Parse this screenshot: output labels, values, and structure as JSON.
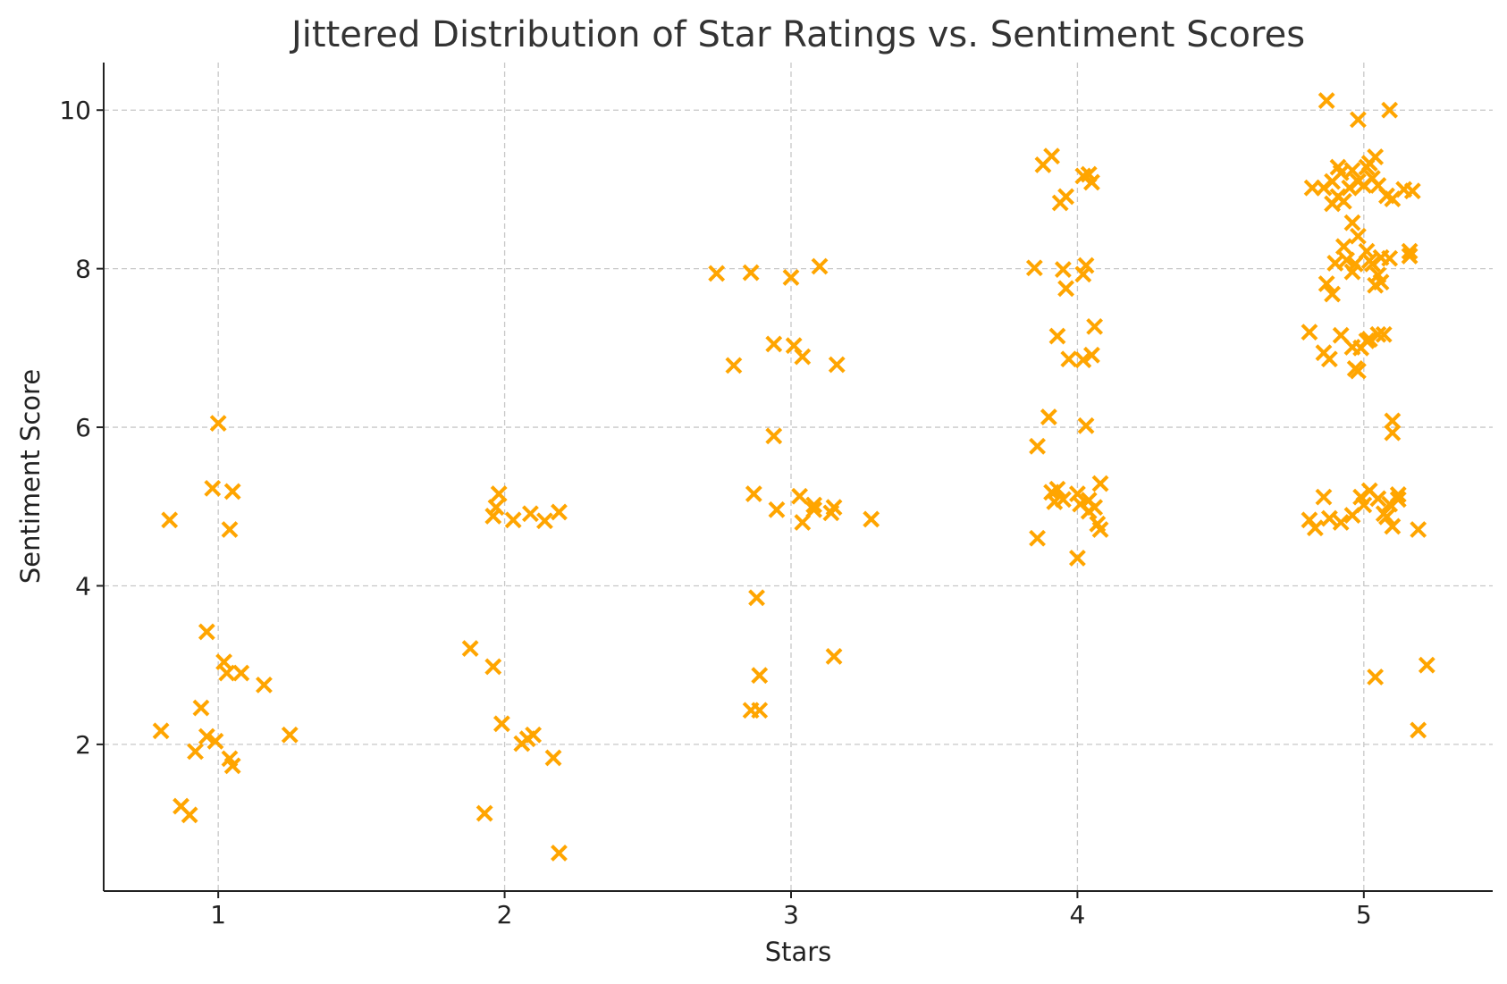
{
  "chart_data": {
    "type": "scatter",
    "title": "Jittered Distribution of Star Ratings vs. Sentiment Scores",
    "xlabel": "Stars",
    "ylabel": "Sentiment Score",
    "xlim": [
      0.6,
      5.45
    ],
    "ylim": [
      0.15,
      10.6
    ],
    "xticks": [
      1,
      2,
      3,
      4,
      5
    ],
    "yticks": [
      2,
      4,
      6,
      8,
      10
    ],
    "grid": true,
    "marker": "x",
    "color": "#FFA500",
    "points": [
      [
        0.83,
        4.83
      ],
      [
        0.8,
        2.17
      ],
      [
        1.0,
        6.05
      ],
      [
        0.98,
        5.23
      ],
      [
        1.05,
        5.19
      ],
      [
        1.04,
        4.71
      ],
      [
        0.96,
        3.42
      ],
      [
        1.02,
        3.04
      ],
      [
        1.03,
        2.9
      ],
      [
        1.08,
        2.9
      ],
      [
        1.16,
        2.75
      ],
      [
        0.94,
        2.46
      ],
      [
        0.96,
        2.1
      ],
      [
        0.99,
        2.04
      ],
      [
        0.92,
        1.91
      ],
      [
        1.04,
        1.82
      ],
      [
        1.05,
        1.73
      ],
      [
        1.25,
        2.12
      ],
      [
        0.87,
        1.22
      ],
      [
        0.9,
        1.11
      ],
      [
        1.98,
        5.16
      ],
      [
        1.97,
        4.99
      ],
      [
        1.96,
        4.88
      ],
      [
        2.03,
        4.83
      ],
      [
        2.09,
        4.91
      ],
      [
        2.14,
        4.82
      ],
      [
        2.19,
        4.93
      ],
      [
        1.88,
        3.21
      ],
      [
        1.96,
        2.98
      ],
      [
        1.99,
        2.26
      ],
      [
        2.06,
        2.01
      ],
      [
        2.08,
        2.07
      ],
      [
        2.1,
        2.12
      ],
      [
        2.17,
        1.83
      ],
      [
        1.93,
        1.13
      ],
      [
        2.19,
        0.63
      ],
      [
        2.74,
        7.94
      ],
      [
        2.86,
        7.95
      ],
      [
        3.0,
        7.89
      ],
      [
        3.1,
        8.03
      ],
      [
        2.8,
        6.78
      ],
      [
        2.94,
        7.05
      ],
      [
        3.01,
        7.03
      ],
      [
        3.04,
        6.89
      ],
      [
        3.16,
        6.79
      ],
      [
        2.94,
        5.89
      ],
      [
        2.87,
        5.16
      ],
      [
        2.95,
        4.96
      ],
      [
        3.03,
        5.13
      ],
      [
        3.08,
        5.02
      ],
      [
        3.04,
        4.8
      ],
      [
        3.08,
        4.96
      ],
      [
        3.14,
        4.92
      ],
      [
        3.15,
        4.99
      ],
      [
        3.28,
        4.84
      ],
      [
        2.88,
        3.85
      ],
      [
        3.15,
        3.11
      ],
      [
        2.89,
        2.87
      ],
      [
        2.86,
        2.43
      ],
      [
        2.89,
        2.43
      ],
      [
        3.88,
        9.31
      ],
      [
        3.91,
        9.42
      ],
      [
        3.94,
        8.83
      ],
      [
        3.96,
        8.91
      ],
      [
        4.02,
        9.17
      ],
      [
        4.04,
        9.19
      ],
      [
        4.05,
        9.09
      ],
      [
        3.85,
        8.01
      ],
      [
        3.95,
        7.99
      ],
      [
        3.96,
        7.75
      ],
      [
        4.02,
        7.93
      ],
      [
        4.03,
        8.04
      ],
      [
        3.93,
        7.15
      ],
      [
        3.97,
        6.86
      ],
      [
        4.02,
        6.85
      ],
      [
        4.05,
        6.91
      ],
      [
        4.06,
        7.27
      ],
      [
        3.9,
        6.13
      ],
      [
        3.86,
        5.76
      ],
      [
        4.03,
        6.02
      ],
      [
        3.91,
        5.18
      ],
      [
        3.93,
        5.22
      ],
      [
        3.92,
        5.06
      ],
      [
        3.95,
        5.09
      ],
      [
        4.0,
        5.16
      ],
      [
        4.01,
        5.03
      ],
      [
        4.04,
        5.08
      ],
      [
        4.04,
        4.94
      ],
      [
        4.06,
        4.99
      ],
      [
        4.07,
        4.78
      ],
      [
        4.08,
        4.71
      ],
      [
        4.08,
        5.29
      ],
      [
        3.86,
        4.6
      ],
      [
        4.0,
        4.35
      ],
      [
        4.87,
        10.12
      ],
      [
        4.98,
        9.88
      ],
      [
        5.09,
        10.0
      ],
      [
        4.82,
        9.02
      ],
      [
        4.86,
        9.02
      ],
      [
        4.89,
        9.1
      ],
      [
        4.91,
        9.28
      ],
      [
        4.92,
        9.21
      ],
      [
        4.91,
        8.91
      ],
      [
        4.93,
        8.85
      ],
      [
        4.95,
        9.02
      ],
      [
        4.96,
        9.24
      ],
      [
        4.98,
        9.1
      ],
      [
        5.0,
        9.05
      ],
      [
        5.01,
        9.28
      ],
      [
        5.02,
        9.33
      ],
      [
        5.03,
        9.14
      ],
      [
        5.04,
        9.41
      ],
      [
        5.05,
        9.05
      ],
      [
        5.08,
        8.92
      ],
      [
        5.1,
        8.88
      ],
      [
        5.14,
        9.0
      ],
      [
        5.17,
        8.98
      ],
      [
        4.89,
        8.82
      ],
      [
        4.96,
        8.58
      ],
      [
        4.98,
        8.41
      ],
      [
        4.93,
        8.28
      ],
      [
        4.9,
        8.07
      ],
      [
        4.94,
        8.11
      ],
      [
        4.97,
        8.06
      ],
      [
        4.96,
        7.96
      ],
      [
        5.01,
        8.22
      ],
      [
        5.02,
        8.1
      ],
      [
        5.03,
        8.06
      ],
      [
        5.05,
        7.92
      ],
      [
        5.06,
        7.83
      ],
      [
        5.04,
        7.79
      ],
      [
        5.06,
        8.14
      ],
      [
        5.09,
        8.13
      ],
      [
        5.16,
        8.22
      ],
      [
        5.16,
        8.16
      ],
      [
        4.87,
        7.81
      ],
      [
        4.89,
        7.68
      ],
      [
        4.81,
        7.2
      ],
      [
        4.86,
        6.94
      ],
      [
        4.88,
        6.86
      ],
      [
        4.92,
        7.16
      ],
      [
        4.96,
        7.01
      ],
      [
        4.97,
        6.74
      ],
      [
        4.98,
        6.71
      ],
      [
        4.99,
        7.0
      ],
      [
        5.01,
        7.09
      ],
      [
        5.02,
        7.11
      ],
      [
        5.05,
        7.17
      ],
      [
        5.07,
        7.17
      ],
      [
        5.1,
        6.08
      ],
      [
        5.1,
        5.93
      ],
      [
        4.81,
        4.83
      ],
      [
        4.83,
        4.73
      ],
      [
        4.86,
        5.12
      ],
      [
        4.88,
        4.85
      ],
      [
        4.92,
        4.8
      ],
      [
        4.96,
        4.89
      ],
      [
        4.99,
        5.12
      ],
      [
        5.0,
        5.02
      ],
      [
        5.02,
        5.2
      ],
      [
        5.05,
        5.1
      ],
      [
        5.07,
        4.91
      ],
      [
        5.08,
        4.87
      ],
      [
        5.09,
        5.03
      ],
      [
        5.1,
        4.75
      ],
      [
        5.12,
        5.15
      ],
      [
        5.12,
        5.09
      ],
      [
        5.19,
        4.71
      ],
      [
        5.04,
        2.85
      ],
      [
        5.22,
        3.0
      ],
      [
        5.19,
        2.18
      ]
    ]
  }
}
